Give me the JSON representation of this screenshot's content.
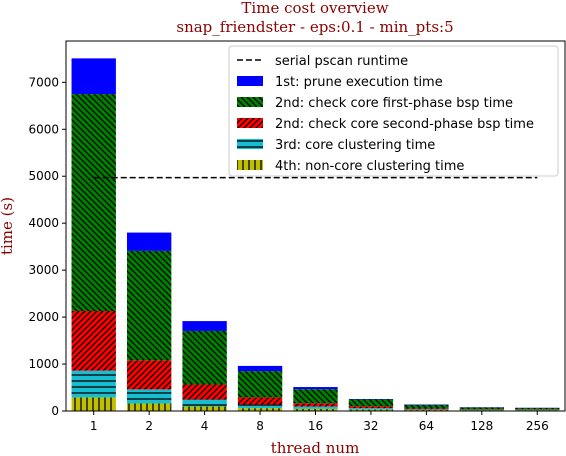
{
  "chart_data": {
    "type": "bar",
    "stacked": true,
    "title": "Time cost overview",
    "subtitle": "snap_friendster - eps:0.1 - min_pts:5",
    "xlabel": "thread num",
    "ylabel": "time (s)",
    "categories": [
      "1",
      "2",
      "4",
      "8",
      "16",
      "32",
      "64",
      "128",
      "256"
    ],
    "ylim": [
      0,
      7880
    ],
    "yticks": [
      0,
      1000,
      2000,
      3000,
      4000,
      5000,
      6000,
      7000
    ],
    "legend_position": "top-right",
    "series": [
      {
        "name": "4th: non-core clustering time",
        "color": "#bfbf00",
        "pattern": "vertical-lines",
        "values": [
          290,
          160,
          95,
          60,
          45,
          30,
          20,
          15,
          15
        ]
      },
      {
        "name": "3rd: core clustering time",
        "color": "#17becf",
        "pattern": "horizontal-lines",
        "values": [
          570,
          300,
          150,
          80,
          50,
          30,
          15,
          10,
          10
        ]
      },
      {
        "name": "2nd: check core second-phase bsp time",
        "color": "#ff0000",
        "pattern": "diagonal-forward",
        "values": [
          1270,
          620,
          320,
          150,
          70,
          40,
          20,
          10,
          10
        ]
      },
      {
        "name": "2nd: check core first-phase bsp time",
        "color": "#008000",
        "pattern": "diagonal-back",
        "values": [
          4620,
          2330,
          1140,
          560,
          300,
          145,
          75,
          40,
          30
        ]
      },
      {
        "name": "1st: prune execution time",
        "color": "#0000ff",
        "pattern": "none",
        "values": [
          760,
          390,
          210,
          110,
          45,
          10,
          10,
          5,
          5
        ]
      }
    ],
    "reference_line": {
      "name": "serial pscan runtime",
      "value": 4970,
      "style": "dashed",
      "color": "#000000",
      "from_category": "1",
      "to_category": "256"
    },
    "legend_order": [
      "serial pscan runtime",
      "1st: prune execution time",
      "2nd: check core first-phase bsp time",
      "2nd: check core second-phase bsp time",
      "3rd: core clustering time",
      "4th: non-core clustering time"
    ],
    "title_color": "#8b0000",
    "label_color": "#8b0000"
  }
}
